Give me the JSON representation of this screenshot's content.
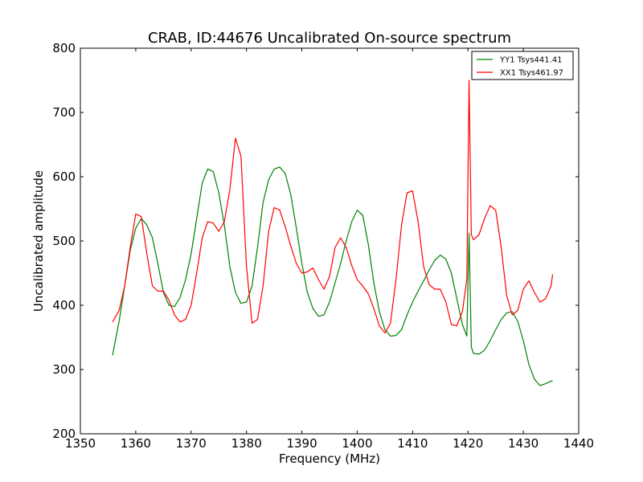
{
  "chart_data": {
    "type": "line",
    "title": "CRAB, ID:44676 Uncalibrated On-source spectrum",
    "xlabel": "Frequency (MHz)",
    "ylabel": "Uncalibrated amplitude",
    "xlim": [
      1350,
      1440
    ],
    "ylim": [
      200,
      800
    ],
    "xticks": [
      1350,
      1360,
      1370,
      1380,
      1390,
      1400,
      1410,
      1420,
      1430,
      1440
    ],
    "yticks": [
      200,
      300,
      400,
      500,
      600,
      700,
      800
    ],
    "grid": false,
    "legend_position": "top-right",
    "series": [
      {
        "name": "YY1 Tsys441.41",
        "color": "#008000",
        "x": [
          1355.8,
          1357,
          1358,
          1359,
          1360,
          1361,
          1362,
          1363,
          1364,
          1365,
          1366,
          1367,
          1368,
          1369,
          1370,
          1371,
          1372,
          1373,
          1374,
          1375,
          1376,
          1377,
          1378,
          1379,
          1380,
          1381,
          1382,
          1383,
          1384,
          1385,
          1386,
          1387,
          1388,
          1389,
          1390,
          1391,
          1392,
          1393,
          1394,
          1395,
          1396,
          1397,
          1398,
          1399,
          1400,
          1401,
          1402,
          1403,
          1404,
          1405,
          1406,
          1407,
          1408,
          1409,
          1410,
          1411,
          1412,
          1413,
          1414,
          1415,
          1416,
          1417,
          1418,
          1419,
          1419.8,
          1420.2,
          1420.6,
          1421,
          1422,
          1423,
          1424,
          1425,
          1426,
          1427,
          1428,
          1429,
          1430,
          1431,
          1432,
          1433,
          1434,
          1435,
          1435.3
        ],
        "values": [
          322,
          375,
          430,
          485,
          520,
          535,
          525,
          505,
          465,
          420,
          400,
          398,
          412,
          440,
          480,
          535,
          590,
          612,
          608,
          575,
          525,
          460,
          420,
          403,
          405,
          430,
          490,
          560,
          595,
          612,
          615,
          605,
          572,
          520,
          465,
          420,
          395,
          383,
          385,
          405,
          435,
          465,
          500,
          530,
          548,
          540,
          495,
          435,
          390,
          362,
          352,
          353,
          362,
          385,
          405,
          422,
          438,
          455,
          470,
          478,
          472,
          450,
          410,
          370,
          352,
          512,
          335,
          325,
          324,
          330,
          345,
          362,
          378,
          388,
          390,
          375,
          345,
          308,
          285,
          275,
          278,
          282,
          282
        ]
      },
      {
        "name": "XX1 Tsys461.97",
        "color": "#ff0000",
        "x": [
          1355.8,
          1357,
          1358,
          1359,
          1360,
          1361,
          1362,
          1363,
          1364,
          1365,
          1366,
          1367,
          1368,
          1369,
          1370,
          1371,
          1372,
          1373,
          1374,
          1375,
          1376,
          1377,
          1378,
          1379,
          1380,
          1381,
          1382,
          1383,
          1384,
          1385,
          1386,
          1387,
          1388,
          1389,
          1390,
          1391,
          1392,
          1393,
          1394,
          1395,
          1396,
          1397,
          1398,
          1399,
          1400,
          1401,
          1402,
          1403,
          1404,
          1405,
          1406,
          1407,
          1408,
          1409,
          1410,
          1411,
          1412,
          1413,
          1414,
          1415,
          1416,
          1417,
          1418,
          1419,
          1419.8,
          1420.2,
          1420.6,
          1421,
          1422,
          1423,
          1424,
          1425,
          1426,
          1427,
          1428,
          1429,
          1430,
          1431,
          1432,
          1433,
          1434,
          1435,
          1435.3
        ],
        "values": [
          374,
          392,
          430,
          490,
          542,
          538,
          480,
          430,
          422,
          422,
          408,
          385,
          374,
          378,
          400,
          450,
          505,
          530,
          528,
          515,
          530,
          580,
          660,
          632,
          460,
          372,
          378,
          430,
          515,
          552,
          548,
          522,
          492,
          465,
          450,
          452,
          458,
          440,
          425,
          445,
          490,
          505,
          490,
          462,
          440,
          430,
          418,
          395,
          368,
          357,
          372,
          440,
          525,
          575,
          578,
          530,
          460,
          432,
          425,
          425,
          405,
          370,
          368,
          390,
          440,
          750,
          510,
          502,
          510,
          535,
          555,
          548,
          490,
          415,
          385,
          392,
          425,
          438,
          420,
          405,
          410,
          430,
          448
        ]
      }
    ]
  }
}
